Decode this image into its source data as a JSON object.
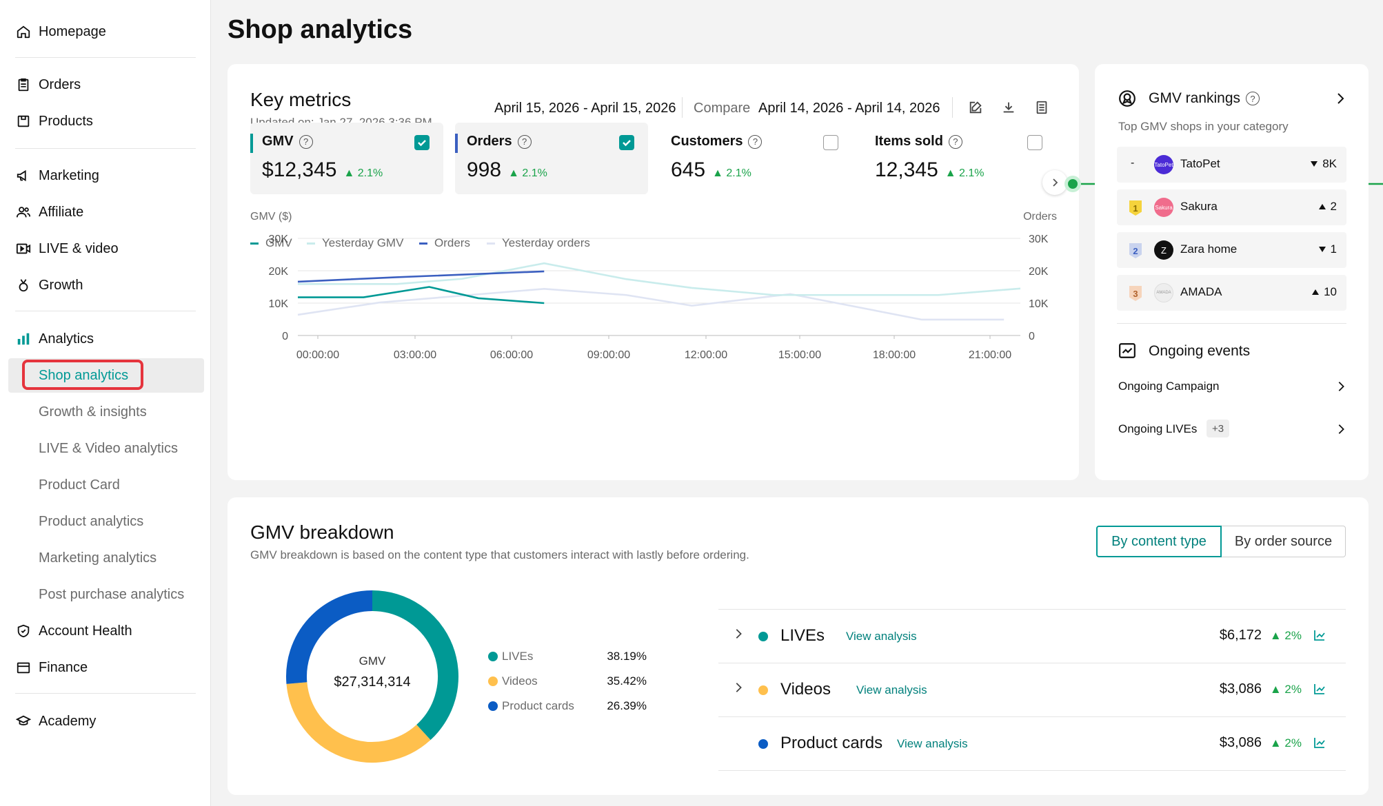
{
  "sidebar": {
    "items": [
      {
        "label": "Homepage",
        "icon": "home-icon"
      },
      {
        "label": "Orders",
        "icon": "clipboard-icon"
      },
      {
        "label": "Products",
        "icon": "box-icon"
      },
      {
        "label": "Marketing",
        "icon": "megaphone-icon"
      },
      {
        "label": "Affiliate",
        "icon": "users-icon"
      },
      {
        "label": "LIVE & video",
        "icon": "video-icon"
      },
      {
        "label": "Growth",
        "icon": "medal-icon"
      },
      {
        "label": "Analytics",
        "icon": "bar-chart-icon"
      }
    ],
    "analytics_sub": [
      "Shop analytics",
      "Growth & insights",
      "LIVE & Video analytics",
      "Product Card",
      "Product analytics",
      "Marketing analytics",
      "Post purchase analytics"
    ],
    "bottom": [
      {
        "label": "Account Health",
        "icon": "shield-icon"
      },
      {
        "label": "Finance",
        "icon": "wallet-icon"
      },
      {
        "label": "Academy",
        "icon": "graduation-cap-icon"
      }
    ]
  },
  "page": {
    "title": "Shop analytics"
  },
  "key_metrics": {
    "title": "Key metrics",
    "updated": "Updated on: Jan 27, 2026 3:36 PM",
    "date_range": "April 15, 2026 - April 15, 2026",
    "compare_label": "Compare",
    "compare_range": "April 14, 2026 - April 14, 2026",
    "metrics": [
      {
        "label": "GMV",
        "value": "$12,345",
        "change": "2.1%",
        "selected": true,
        "color": "#009995"
      },
      {
        "label": "Orders",
        "value": "998",
        "change": "2.1%",
        "selected": true,
        "color": "#3b5fc0"
      },
      {
        "label": "Customers",
        "value": "645",
        "change": "2.1%",
        "selected": false
      },
      {
        "label": "Items sold",
        "value": "12,345",
        "change": "2.1%",
        "selected": false
      }
    ],
    "legend": [
      "GMV",
      "Yesterday GMV",
      "Orders",
      "Yesterday orders"
    ]
  },
  "chart_data": {
    "type": "line",
    "ylabel": "GMV ($)",
    "y2label": "Orders",
    "y_ticks": [
      "30K",
      "20K",
      "10K",
      "0"
    ],
    "y2_ticks": [
      "30K",
      "20K",
      "10K",
      "0"
    ],
    "x_ticks": [
      "00:00:00",
      "03:00:00",
      "06:00:00",
      "09:00:00",
      "12:00:00",
      "15:00:00",
      "18:00:00",
      "21:00:00"
    ],
    "ylim": [
      0,
      30000
    ],
    "xlim": [
      0,
      22
    ],
    "series": [
      {
        "name": "GMV",
        "color": "#009995",
        "x": [
          0,
          2,
          4,
          5.5,
          7.5
        ],
        "y": [
          11800,
          11800,
          15000,
          11500,
          10000
        ]
      },
      {
        "name": "Yesterday GMV",
        "color": "#c9ecec",
        "x": [
          0,
          3,
          5,
          7.5,
          10,
          12,
          14.5,
          17,
          19.5,
          22
        ],
        "y": [
          15900,
          15900,
          17500,
          22300,
          17400,
          14700,
          12500,
          12500,
          12500,
          14500
        ]
      },
      {
        "name": "Orders",
        "color": "#3b5fc0",
        "x": [
          0,
          3,
          7.5
        ],
        "y": [
          16600,
          18000,
          19800
        ]
      },
      {
        "name": "Yesterday orders",
        "color": "#dfe4f3",
        "x": [
          0,
          2.5,
          7.5,
          10,
          12,
          15,
          19,
          21.5
        ],
        "y": [
          6400,
          10200,
          14400,
          12500,
          9200,
          12800,
          4900,
          4900
        ]
      }
    ]
  },
  "rankings": {
    "title": "GMV rankings",
    "subtitle": "Top GMV shops in your category",
    "rows": [
      {
        "rank": "-",
        "name": "TatoPet",
        "logo_text": "TatoPet",
        "logo_color": "#4b2bd6",
        "direction": "down",
        "delta": "8K"
      },
      {
        "rank": "1",
        "name": "Sakura",
        "logo_text": "Sakura",
        "logo_color": "#f06c8c",
        "direction": "up",
        "delta": "2",
        "badge_color": "#f5d33c"
      },
      {
        "rank": "2",
        "name": "Zara home",
        "logo_text": "Z",
        "logo_color": "#111111",
        "direction": "down",
        "delta": "1",
        "badge_color": "#c9d3ee"
      },
      {
        "rank": "3",
        "name": "AMADA",
        "logo_text": "AMADA",
        "logo_color": "#eeeeee",
        "direction": "up",
        "delta": "10",
        "badge_color": "#f6d4bb"
      }
    ],
    "events_title": "Ongoing events",
    "events": [
      {
        "label": "Ongoing Campaign"
      },
      {
        "label": "Ongoing LIVEs",
        "badge": "+3"
      }
    ]
  },
  "breakdown": {
    "title": "GMV breakdown",
    "subtitle": "GMV breakdown is based on the content type that customers interact with lastly before ordering.",
    "tabs": [
      "By content type",
      "By order source"
    ],
    "donut_label": "GMV",
    "donut_total": "$27,314,314",
    "slices": [
      {
        "name": "LIVEs",
        "pct": "38.19%",
        "value": 38.19,
        "color": "#009995"
      },
      {
        "name": "Videos",
        "pct": "35.42%",
        "value": 35.42,
        "color": "#ffc04d"
      },
      {
        "name": "Product cards",
        "pct": "26.39%",
        "value": 26.39,
        "color": "#0b5cc4"
      }
    ],
    "rows": [
      {
        "name": "LIVEs",
        "link": "View analysis",
        "amount": "$6,172",
        "change": "2%",
        "color": "#009995",
        "expandable": true
      },
      {
        "name": "Videos",
        "link": "View analysis",
        "amount": "$3,086",
        "change": "2%",
        "color": "#ffc04d",
        "expandable": true
      },
      {
        "name": "Product cards",
        "link": "View analysis",
        "amount": "$3,086",
        "change": "2%",
        "color": "#0b5cc4",
        "expandable": false
      }
    ]
  }
}
